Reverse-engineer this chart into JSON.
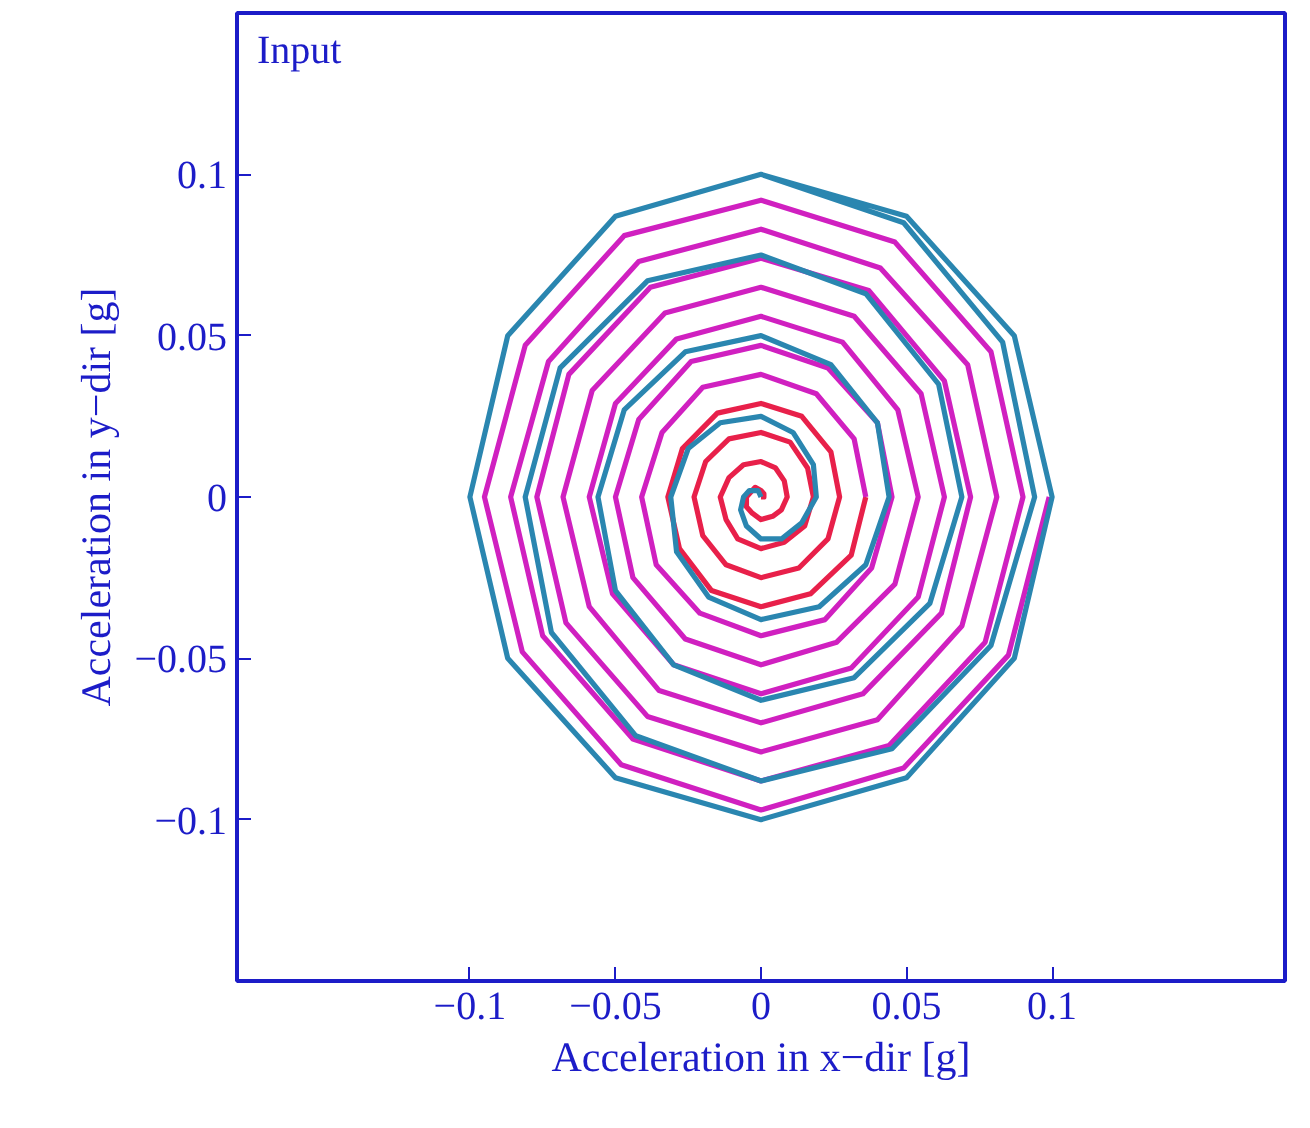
{
  "chart_data": {
    "type": "line",
    "xlabel": "Acceleration in x−dir [g]",
    "ylabel": "Acceleration in y−dir [g]",
    "annotations": [
      "Input"
    ],
    "xlim": [
      -0.18,
      0.18
    ],
    "ylim": [
      -0.15,
      0.15
    ],
    "xticks": [
      {
        "value": -0.1,
        "label": "−0.1"
      },
      {
        "value": -0.05,
        "label": "−0.05"
      },
      0,
      0.05,
      0.1
    ],
    "yticks": [
      {
        "value": -0.1,
        "label": "−0.1"
      },
      {
        "value": -0.05,
        "label": "−0.05"
      },
      0,
      0.05,
      0.1
    ],
    "series": [
      {
        "color": "#e8204a",
        "x": [
          0,
          0.001,
          0.001,
          0,
          -0.002,
          -0.003,
          -0.005,
          -0.005,
          -0.003,
          0,
          0.004,
          0.007,
          0.009,
          0.008,
          0.005,
          0,
          -0.006,
          -0.011,
          -0.014,
          -0.012,
          -0.008,
          0,
          0.008,
          0.015,
          0.018,
          0.016,
          0.01,
          0,
          -0.011,
          -0.019,
          -0.023,
          -0.02,
          -0.012,
          0,
          0.013,
          0.023,
          0.027,
          0.024,
          0.014,
          0,
          -0.015,
          -0.027,
          -0.032,
          -0.028,
          -0.017,
          0,
          0.017,
          0.031,
          0.036
        ],
        "values": [
          0,
          0,
          0.001,
          0.002,
          0.003,
          0.002,
          0,
          -0.003,
          -0.005,
          -0.007,
          -0.006,
          -0.004,
          0,
          0.005,
          0.009,
          0.011,
          0.01,
          0.006,
          0,
          -0.007,
          -0.013,
          -0.016,
          -0.014,
          -0.009,
          0,
          0.009,
          0.017,
          0.02,
          0.018,
          0.011,
          0,
          -0.012,
          -0.021,
          -0.025,
          -0.022,
          -0.013,
          0,
          0.014,
          0.025,
          0.029,
          0.026,
          0.015,
          0,
          -0.016,
          -0.029,
          -0.034,
          -0.03,
          -0.018,
          0
        ]
      },
      {
        "color": "#d020c0",
        "x": [
          0.036,
          0.032,
          0.019,
          0,
          -0.02,
          -0.034,
          -0.041,
          -0.036,
          -0.021,
          0,
          0.022,
          0.038,
          0.045,
          0.04,
          0.023,
          0,
          -0.024,
          -0.042,
          -0.05,
          -0.044,
          -0.026,
          0,
          0.026,
          0.046,
          0.054,
          0.047,
          0.028,
          0,
          -0.029,
          -0.05,
          -0.059,
          -0.051,
          -0.03,
          0,
          0.031,
          0.054,
          0.063,
          0.055,
          0.032,
          0,
          -0.033,
          -0.058,
          -0.068,
          -0.059,
          -0.035,
          0,
          0.035,
          0.062,
          0.072,
          0.063,
          0.037,
          0,
          -0.038,
          -0.066,
          -0.077,
          -0.067,
          -0.039,
          0,
          0.04,
          0.069,
          0.081,
          0.071,
          0.041,
          0,
          -0.042,
          -0.073,
          -0.086,
          -0.075,
          -0.044,
          0,
          0.044,
          0.077,
          0.09,
          0.079,
          0.046,
          0,
          -0.047,
          -0.081,
          -0.095,
          -0.082,
          -0.048,
          0,
          0.049,
          0.085,
          0.099
        ],
        "values": [
          0,
          0.018,
          0.032,
          0.038,
          0.034,
          0.02,
          0,
          -0.021,
          -0.036,
          -0.043,
          -0.038,
          -0.022,
          0,
          0.023,
          0.04,
          0.047,
          0.042,
          0.024,
          0,
          -0.025,
          -0.044,
          -0.052,
          -0.045,
          -0.027,
          0,
          0.027,
          0.048,
          0.056,
          0.049,
          0.029,
          0,
          -0.03,
          -0.052,
          -0.061,
          -0.053,
          -0.031,
          0,
          0.032,
          0.056,
          0.065,
          0.057,
          0.033,
          0,
          -0.034,
          -0.06,
          -0.07,
          -0.061,
          -0.036,
          0,
          0.036,
          0.064,
          0.074,
          0.065,
          0.038,
          0,
          -0.039,
          -0.068,
          -0.079,
          -0.069,
          -0.04,
          0,
          0.041,
          0.071,
          0.083,
          0.073,
          0.042,
          0,
          -0.043,
          -0.075,
          -0.088,
          -0.077,
          -0.045,
          0,
          0.045,
          0.079,
          0.092,
          0.081,
          0.047,
          0,
          -0.048,
          -0.083,
          -0.097,
          -0.084,
          -0.049,
          0
        ]
      },
      {
        "color": "#2a86b0",
        "x": [
          0,
          -0.001,
          -0.004,
          -0.006,
          -0.007,
          -0.005,
          0,
          0.007,
          0.014,
          0.019,
          0.018,
          0.011,
          0,
          -0.014,
          -0.025,
          -0.031,
          -0.029,
          -0.018,
          0,
          0.02,
          0.036,
          0.044,
          0.04,
          0.024,
          0,
          -0.026,
          -0.047,
          -0.056,
          -0.05,
          -0.03,
          0,
          0.032,
          0.058,
          0.069,
          0.061,
          0.036,
          0,
          -0.039,
          -0.069,
          -0.081,
          -0.072,
          -0.043,
          0,
          0.045,
          0.079,
          0.094,
          0.083,
          0.049,
          0,
          -0.05,
          -0.087,
          -0.1,
          -0.087,
          -0.05,
          0,
          0.05,
          0.087,
          0.1,
          0.087,
          0.05,
          0
        ],
        "values": [
          0,
          0.002,
          0.002,
          0,
          -0.004,
          -0.009,
          -0.013,
          -0.013,
          -0.008,
          0,
          0.01,
          0.02,
          0.025,
          0.023,
          0.015,
          0,
          -0.017,
          -0.031,
          -0.038,
          -0.034,
          -0.021,
          0,
          0.023,
          0.041,
          0.05,
          0.045,
          0.027,
          0,
          -0.029,
          -0.052,
          -0.063,
          -0.056,
          -0.033,
          0,
          0.035,
          0.063,
          0.075,
          0.067,
          0.04,
          0,
          -0.042,
          -0.074,
          -0.088,
          -0.078,
          -0.046,
          0,
          0.048,
          0.085,
          0.1,
          0.087,
          0.05,
          0,
          -0.05,
          -0.087,
          -0.1,
          -0.087,
          -0.05,
          0,
          0.05,
          0.087,
          0.1
        ]
      }
    ]
  }
}
